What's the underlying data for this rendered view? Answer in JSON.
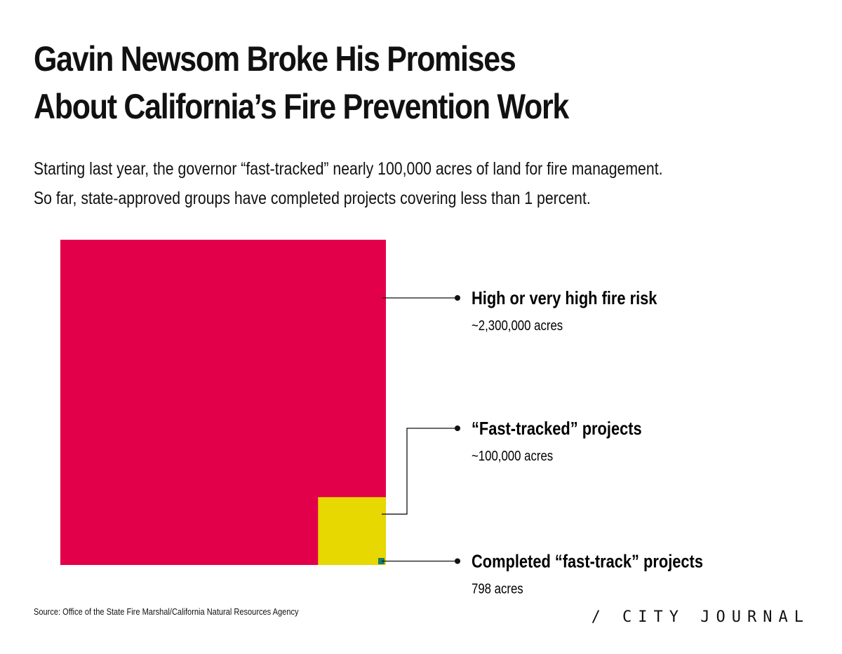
{
  "title_lines": [
    "Gavin Newsom Broke His Promises",
    "About California’s Fire Prevention Work"
  ],
  "subtitle_lines": [
    "Starting last year, the governor “fast-tracked” nearly 100,000 acres of land for fire management.",
    "So far, state-approved groups have completed projects covering less than 1 percent."
  ],
  "chart_data": {
    "type": "nested-area-squares",
    "series": [
      {
        "label": "High or very high fire risk",
        "value_text": "~2,300,000 acres",
        "value": 2300000,
        "color": "#e3004a"
      },
      {
        "label": "“Fast-tracked” projects",
        "value_text": "~100,000 acres",
        "value": 100000,
        "color": "#e6d800"
      },
      {
        "label": "Completed “fast-track” projects",
        "value_text": "798 acres",
        "value": 798,
        "color": "#1d7b6c"
      }
    ]
  },
  "source": "Source: Office of the State Fire Marshal/California Natural Resources Agency",
  "brand": "/ CITY JOURNAL"
}
